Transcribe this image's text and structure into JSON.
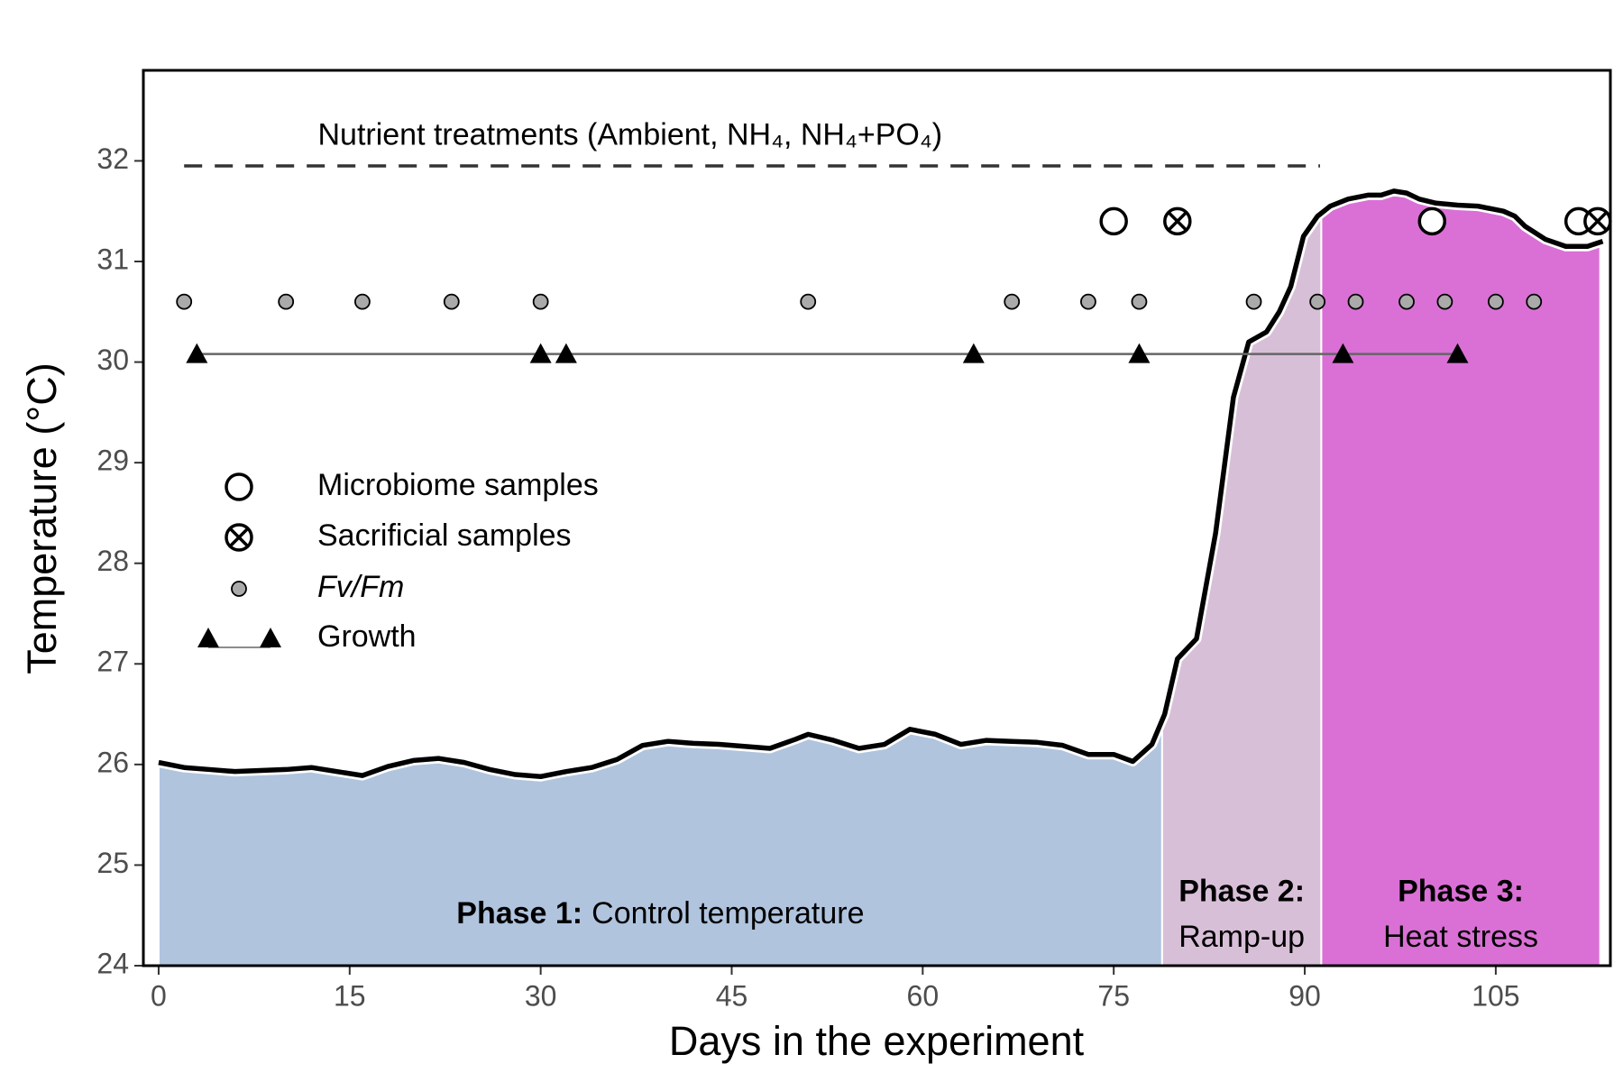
{
  "chart_data": {
    "type": "line",
    "xlabel": "Days in the experiment",
    "ylabel": "Temperature (°C)",
    "xlim": [
      -1.2,
      114
    ],
    "ylim": [
      24,
      32.9
    ],
    "xticks": [
      0,
      15,
      30,
      45,
      60,
      75,
      90,
      105
    ],
    "yticks": [
      24,
      25,
      26,
      27,
      28,
      29,
      30,
      31,
      32
    ],
    "color": "#000000",
    "x": [
      0,
      2,
      4,
      6,
      8,
      10,
      12,
      14,
      16,
      18,
      20,
      22,
      24,
      26,
      28,
      30,
      32,
      34,
      36,
      38,
      40,
      42,
      44,
      46,
      48,
      50,
      51,
      53,
      55,
      57,
      59,
      61,
      63,
      65,
      67,
      69,
      71,
      73,
      75,
      76.5,
      78,
      79,
      80,
      81.5,
      83,
      84.4,
      85.6,
      87,
      88,
      88.9,
      89.9,
      91,
      92,
      93.4,
      95,
      96,
      97,
      98,
      99,
      100.3,
      102,
      103.6,
      105.6,
      106.5,
      107.3,
      108.9,
      110.5,
      112.2,
      113.4
    ],
    "values": [
      26.02,
      25.97,
      25.95,
      25.93,
      25.94,
      25.95,
      25.97,
      25.93,
      25.89,
      25.98,
      26.04,
      26.06,
      26.02,
      25.95,
      25.9,
      25.88,
      25.93,
      25.97,
      26.05,
      26.19,
      26.23,
      26.21,
      26.2,
      26.18,
      26.16,
      26.25,
      26.3,
      26.24,
      26.16,
      26.2,
      26.35,
      26.3,
      26.2,
      26.24,
      26.23,
      26.22,
      26.19,
      26.1,
      26.1,
      26.03,
      26.2,
      26.5,
      27.05,
      27.25,
      28.3,
      29.65,
      30.2,
      30.3,
      30.5,
      30.75,
      31.25,
      31.45,
      31.55,
      31.62,
      31.66,
      31.66,
      31.7,
      31.68,
      31.62,
      31.58,
      31.56,
      31.55,
      31.5,
      31.45,
      31.35,
      31.22,
      31.15,
      31.15,
      31.2
    ],
    "phases": [
      {
        "title": "Phase 1:",
        "label": "Control temperature",
        "start": 0,
        "end": 78.8,
        "color": "#b0c4de"
      },
      {
        "title": "Phase 2:",
        "label": "Ramp-up",
        "start": 78.8,
        "end": 91.3,
        "color": "#d8bfd8"
      },
      {
        "title": "Phase 3:",
        "label": "Heat stress",
        "start": 91.3,
        "end": 113.2,
        "color": "#da70d6"
      }
    ],
    "annotation": {
      "text": "Nutrient treatments (Ambient, NH₄, NH₄+PO₄)",
      "x": [
        2,
        91.2
      ],
      "y": 31.95,
      "color": "#333333"
    },
    "markers": [
      {
        "name": "Microbiome samples",
        "shape": "circle",
        "x": [
          75,
          100,
          111.5
        ],
        "y": 31.4
      },
      {
        "name": "Sacrificial samples",
        "shape": "crossed-circle",
        "x": [
          80,
          113
        ],
        "y": 31.4
      },
      {
        "name": "Fv/Fm",
        "shape": "dot",
        "font_style": "italic",
        "color": "#aaaaaa",
        "x": [
          2,
          10,
          16,
          23,
          30,
          51,
          67,
          73,
          77,
          86,
          91,
          94,
          98,
          101,
          105,
          108
        ],
        "y": 30.6
      },
      {
        "name": "Growth",
        "shape": "triangle",
        "connected": true,
        "x": [
          3,
          30,
          32,
          64,
          77,
          93,
          102
        ],
        "y": 30.08
      }
    ],
    "legend": "center-left"
  }
}
